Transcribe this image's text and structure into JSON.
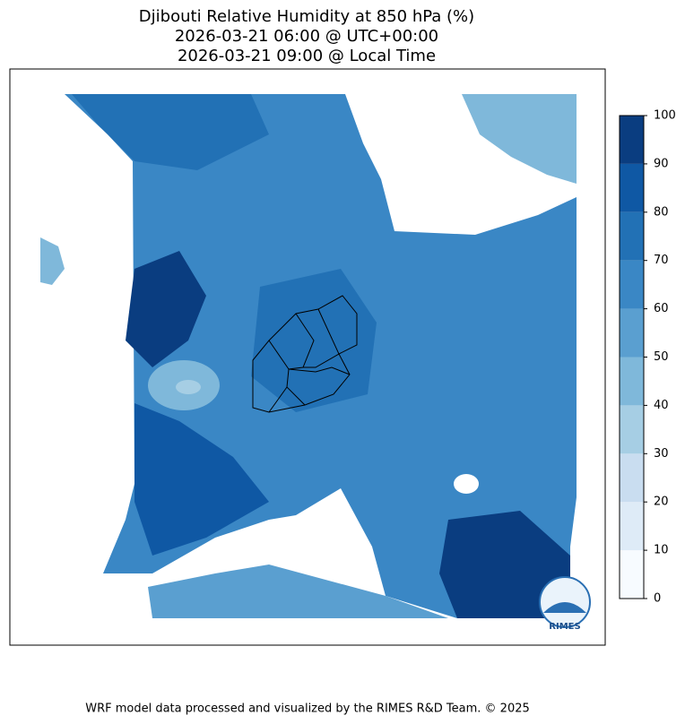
{
  "title": [
    "Djibouti Relative Humidity at 850 hPa (%)",
    "2026-03-21 06:00 @ UTC+00:00",
    "2026-03-21 09:00 @ Local Time"
  ],
  "colorbar": {
    "ticks": [
      0,
      10,
      20,
      30,
      40,
      50,
      60,
      70,
      80,
      90,
      100
    ],
    "colors": [
      "#f7fbff",
      "#deebf7",
      "#c9ddf0",
      "#a6cee4",
      "#7fb8da",
      "#5a9fd0",
      "#3a87c5",
      "#2271b5",
      "#0f58a4",
      "#0a3d80"
    ]
  },
  "logo": "RIMES",
  "footer": "WRF model data processed and visualized by the RIMES R&D Team. © 2025"
}
